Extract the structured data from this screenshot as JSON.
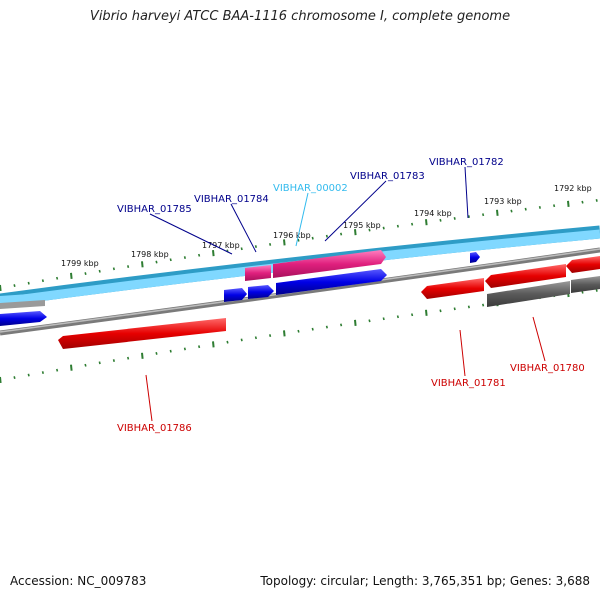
{
  "title": "Vibrio harveyi ATCC BAA-1116 chromosome I, complete genome",
  "footer": {
    "accession": "Accession: NC_009783",
    "info": "Topology: circular; Length: 3,765,351 bp; Genes: 3,688"
  },
  "colors": {
    "forward_gene": "#0000e6",
    "reverse_gene": "#e60000",
    "rna_gene": "#e0207e",
    "other_gene": "#5a5a5a",
    "forward_track": "#80d8ff",
    "backbone": "#808080",
    "tick": "#2e7d32",
    "label_rna": "#33bbee",
    "label_forward": "#00008b",
    "label_reverse": "#cc0000"
  },
  "kbp_labels": [
    "1799 kbp",
    "1798 kbp",
    "1797 kbp",
    "1796 kbp",
    "1795 kbp",
    "1794 kbp",
    "1793 kbp",
    "1792 kbp"
  ],
  "gene_labels": [
    {
      "text": "VIBHAR_01785",
      "kind": "forward"
    },
    {
      "text": "VIBHAR_01784",
      "kind": "forward"
    },
    {
      "text": "VIBHAR_00002",
      "kind": "rna"
    },
    {
      "text": "VIBHAR_01783",
      "kind": "forward"
    },
    {
      "text": "VIBHAR_01782",
      "kind": "forward"
    },
    {
      "text": "VIBHAR_01786",
      "kind": "reverse"
    },
    {
      "text": "VIBHAR_01781",
      "kind": "reverse"
    },
    {
      "text": "VIBHAR_01780",
      "kind": "reverse"
    }
  ]
}
